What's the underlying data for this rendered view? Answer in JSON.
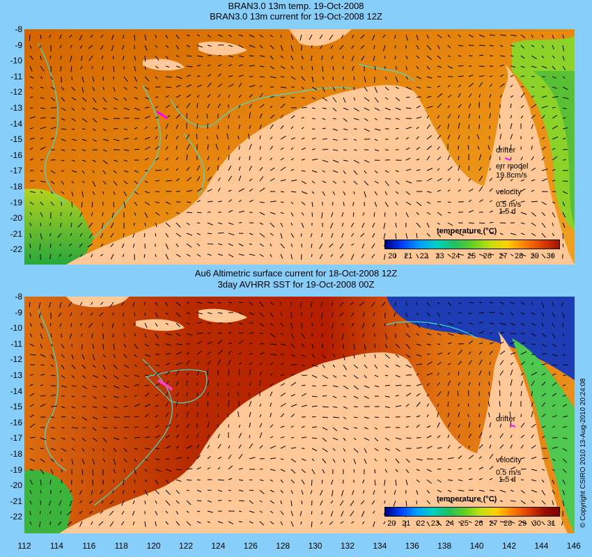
{
  "top": {
    "title_line1": "BRAN3.0 13m temp. 19-Oct-2008",
    "title_line2": "BRAN3.0 13m current for 19-Oct-2008 12Z",
    "legend": {
      "drifter": "drifter",
      "err_model": "err model",
      "err_value": "19.8cm/s",
      "velocity": "velocity",
      "velocity_scale": "0.5 m/s",
      "velocity_time": "1.5 d"
    },
    "colorbar": {
      "title": "temperature (°C)",
      "ticks": [
        "20",
        "21",
        "22",
        "23",
        "24",
        "25",
        "26",
        "27",
        "28",
        "29",
        "30"
      ]
    }
  },
  "bottom": {
    "title_line1": "Au6 Altimetric surface current for 18-Oct-2008 12Z",
    "title_line2": "3day AVHRR SST for 19-Oct-2008 00Z",
    "legend": {
      "drifter": "drifter",
      "velocity": "velocity",
      "velocity_scale": "0.5 m/s",
      "velocity_time": "1.5 d"
    },
    "colorbar": {
      "title": "temperature (°C)",
      "ticks": [
        "20",
        "21",
        "22",
        "23",
        "24",
        "25",
        "26",
        "27",
        "28",
        "29",
        "30",
        "31"
      ]
    }
  },
  "y_ticks": [
    "-8",
    "-9",
    "-10",
    "-11",
    "-12",
    "-13",
    "-14",
    "-15",
    "-16",
    "-17",
    "-18",
    "-19",
    "-20",
    "-21",
    "-22"
  ],
  "x_ticks": [
    "112",
    "114",
    "116",
    "118",
    "120",
    "122",
    "124",
    "126",
    "128",
    "130",
    "132",
    "134",
    "136",
    "138",
    "140",
    "142",
    "144",
    "146"
  ],
  "copyright": "© Copyright CSIRO 2010   13-Aug-2010 20:24:08",
  "colors": {
    "background": "#87cefa",
    "land": "#ffc896",
    "ocean_warm": "#e67800",
    "ocean_hot": "#b41e00",
    "ocean_cool": "#28b428",
    "bathymetry": "#40e0d0",
    "drifter": "#ff00ff"
  }
}
